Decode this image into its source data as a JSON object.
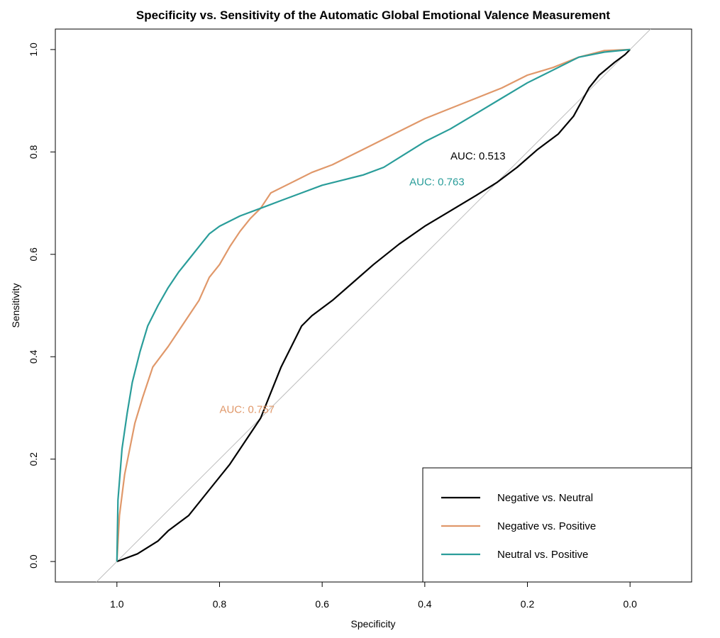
{
  "chart_data": {
    "type": "line",
    "title": "Specificity vs. Sensitivity of the Automatic Global Emotional Valence Measurement",
    "xlabel": "Specificity",
    "ylabel": "Sensitivity",
    "x_reversed": true,
    "xlim": [
      1.12,
      -0.12
    ],
    "ylim": [
      -0.04,
      1.04
    ],
    "x_ticks": [
      "1.0",
      "0.8",
      "0.6",
      "0.4",
      "0.2",
      "0.0"
    ],
    "y_ticks": [
      "0.0",
      "0.2",
      "0.4",
      "0.6",
      "0.8",
      "1.0"
    ],
    "reference_line": {
      "description": "diagonal y = 1 - x",
      "color": "#bdbdbd"
    },
    "legend_position": "bottom-right",
    "series": [
      {
        "name": "Negative vs. Neutral",
        "color": "#000000",
        "auc_label": "AUC: 0.513",
        "auc_pos": [
          0.35,
          0.785
        ],
        "points": [
          [
            1.0,
            0.0
          ],
          [
            0.96,
            0.015
          ],
          [
            0.92,
            0.04
          ],
          [
            0.9,
            0.06
          ],
          [
            0.86,
            0.09
          ],
          [
            0.82,
            0.14
          ],
          [
            0.78,
            0.19
          ],
          [
            0.74,
            0.25
          ],
          [
            0.72,
            0.28
          ],
          [
            0.7,
            0.33
          ],
          [
            0.68,
            0.38
          ],
          [
            0.66,
            0.42
          ],
          [
            0.64,
            0.46
          ],
          [
            0.62,
            0.48
          ],
          [
            0.58,
            0.51
          ],
          [
            0.54,
            0.545
          ],
          [
            0.5,
            0.58
          ],
          [
            0.45,
            0.62
          ],
          [
            0.4,
            0.655
          ],
          [
            0.35,
            0.685
          ],
          [
            0.3,
            0.715
          ],
          [
            0.26,
            0.74
          ],
          [
            0.22,
            0.77
          ],
          [
            0.18,
            0.805
          ],
          [
            0.14,
            0.835
          ],
          [
            0.11,
            0.87
          ],
          [
            0.08,
            0.925
          ],
          [
            0.06,
            0.95
          ],
          [
            0.03,
            0.975
          ],
          [
            0.01,
            0.99
          ],
          [
            0.0,
            1.0
          ]
        ]
      },
      {
        "name": "Negative vs. Positive",
        "color": "#e0986a",
        "auc_label": "AUC: 0.757",
        "auc_pos": [
          0.8,
          0.29
        ],
        "points": [
          [
            1.0,
            0.0
          ],
          [
            0.995,
            0.09
          ],
          [
            0.985,
            0.17
          ],
          [
            0.975,
            0.22
          ],
          [
            0.965,
            0.27
          ],
          [
            0.95,
            0.32
          ],
          [
            0.93,
            0.38
          ],
          [
            0.9,
            0.42
          ],
          [
            0.88,
            0.45
          ],
          [
            0.86,
            0.48
          ],
          [
            0.84,
            0.51
          ],
          [
            0.82,
            0.555
          ],
          [
            0.8,
            0.58
          ],
          [
            0.78,
            0.615
          ],
          [
            0.76,
            0.645
          ],
          [
            0.74,
            0.67
          ],
          [
            0.72,
            0.69
          ],
          [
            0.7,
            0.72
          ],
          [
            0.66,
            0.74
          ],
          [
            0.62,
            0.76
          ],
          [
            0.58,
            0.775
          ],
          [
            0.54,
            0.795
          ],
          [
            0.5,
            0.815
          ],
          [
            0.45,
            0.84
          ],
          [
            0.4,
            0.865
          ],
          [
            0.35,
            0.885
          ],
          [
            0.3,
            0.905
          ],
          [
            0.25,
            0.925
          ],
          [
            0.2,
            0.95
          ],
          [
            0.15,
            0.965
          ],
          [
            0.1,
            0.985
          ],
          [
            0.05,
            0.998
          ],
          [
            0.0,
            1.0
          ]
        ]
      },
      {
        "name": "Neutral vs. Positive",
        "color": "#2a9d9a",
        "auc_label": "AUC: 0.763",
        "auc_pos": [
          0.43,
          0.735
        ],
        "points": [
          [
            1.0,
            0.0
          ],
          [
            0.998,
            0.12
          ],
          [
            0.99,
            0.22
          ],
          [
            0.98,
            0.29
          ],
          [
            0.97,
            0.35
          ],
          [
            0.955,
            0.41
          ],
          [
            0.94,
            0.46
          ],
          [
            0.92,
            0.5
          ],
          [
            0.9,
            0.535
          ],
          [
            0.88,
            0.565
          ],
          [
            0.86,
            0.59
          ],
          [
            0.84,
            0.615
          ],
          [
            0.82,
            0.64
          ],
          [
            0.8,
            0.655
          ],
          [
            0.76,
            0.675
          ],
          [
            0.72,
            0.69
          ],
          [
            0.68,
            0.705
          ],
          [
            0.64,
            0.72
          ],
          [
            0.6,
            0.735
          ],
          [
            0.56,
            0.745
          ],
          [
            0.52,
            0.755
          ],
          [
            0.48,
            0.77
          ],
          [
            0.44,
            0.795
          ],
          [
            0.4,
            0.82
          ],
          [
            0.35,
            0.845
          ],
          [
            0.3,
            0.875
          ],
          [
            0.25,
            0.905
          ],
          [
            0.2,
            0.935
          ],
          [
            0.15,
            0.96
          ],
          [
            0.1,
            0.985
          ],
          [
            0.05,
            0.995
          ],
          [
            0.0,
            1.0
          ]
        ]
      }
    ]
  }
}
